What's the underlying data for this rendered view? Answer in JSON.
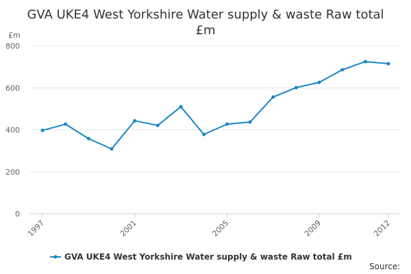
{
  "chart_data": {
    "type": "line",
    "title_lines": [
      "GVA UKE4 West Yorkshire Water supply & waste Raw total",
      "£m"
    ],
    "y_unit_label": "£m",
    "xlabel": "",
    "ylabel": "",
    "x": [
      1997,
      1998,
      1999,
      2000,
      2001,
      2002,
      2003,
      2004,
      2005,
      2006,
      2007,
      2008,
      2009,
      2010,
      2011,
      2012
    ],
    "x_tick_labels": [
      "1997",
      "2001",
      "2005",
      "2009",
      "2012"
    ],
    "y_ticks": [
      0,
      200,
      400,
      600,
      800
    ],
    "ylim": [
      0,
      800
    ],
    "grid": true,
    "legend_position": "bottom-center",
    "series": [
      {
        "name": "GVA UKE4 West Yorkshire Water supply & waste Raw total £m",
        "color": "#1a85c5",
        "values": [
          397,
          427,
          358,
          309,
          443,
          421,
          510,
          378,
          427,
          437,
          556,
          601,
          626,
          686,
          725,
          715
        ]
      }
    ],
    "source_label": "Source:"
  }
}
